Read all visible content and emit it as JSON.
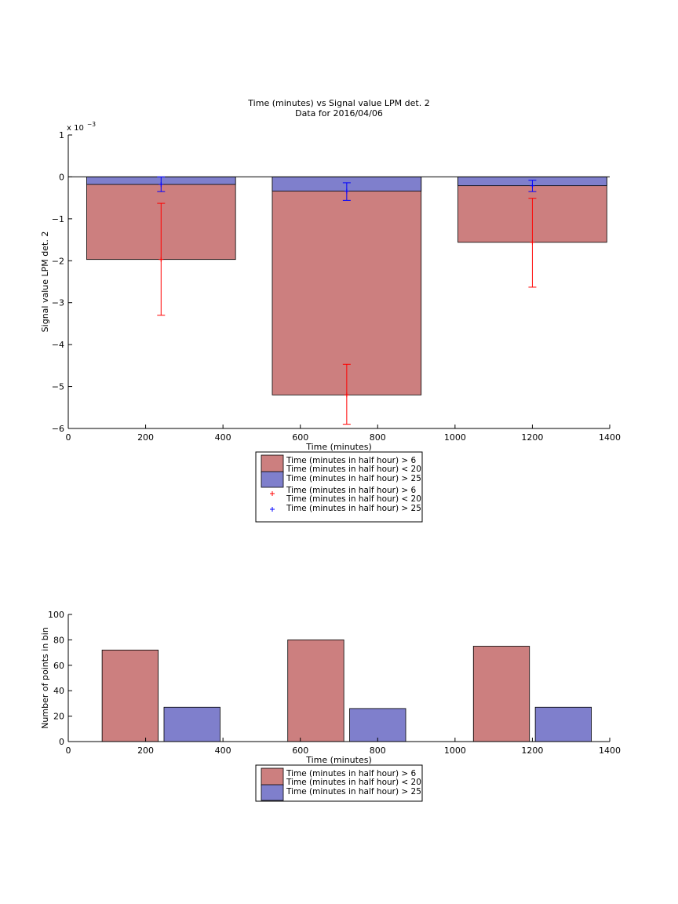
{
  "figure": {
    "title_line1": "Time (minutes) vs Signal value LPM det. 2",
    "title_line2": "Data for 2016/04/06"
  },
  "colors": {
    "red_fill": "#cc7f7f",
    "blue_fill": "#7f7fcc",
    "red_line": "#ff0000",
    "blue_line": "#0000ff"
  },
  "chart_data": [
    {
      "type": "bar",
      "xlabel": "Time (minutes)",
      "ylabel": "Signal value LPM det. 2",
      "y_exponent": {
        "base": "x 10",
        "power": "−3"
      },
      "xlim": [
        0,
        1400
      ],
      "ylim": [
        -6,
        1
      ],
      "x_ticks": [
        0,
        200,
        400,
        600,
        800,
        1000,
        1200,
        1400
      ],
      "y_ticks": [
        1,
        0,
        -1,
        -2,
        -3,
        -4,
        -5,
        -6
      ],
      "grid": false,
      "legend_position": "below",
      "bar_x": [
        240,
        720,
        1200
      ],
      "bar_width": 385,
      "series": [
        {
          "name": "Time (minutes in half hour) > 6 Time (minutes in half hour) < 20",
          "values": [
            -1.97,
            -5.2,
            -1.56
          ],
          "error_mean": [
            -1.97,
            -5.2,
            -1.56
          ],
          "error_low": [
            -3.3,
            -5.9,
            -2.63
          ],
          "error_high": [
            -0.63,
            -4.47,
            -0.51
          ],
          "error_x": [
            240,
            720,
            1200
          ]
        },
        {
          "name": "Time (minutes in half hour) > 25",
          "values": [
            -0.18,
            -0.34,
            -0.21
          ],
          "error_mean": [
            -0.18,
            -0.34,
            -0.21
          ],
          "error_low": [
            -0.35,
            -0.56,
            -0.35
          ],
          "error_high": [
            0.0,
            -0.14,
            -0.08
          ],
          "error_x": [
            240,
            720,
            1200
          ]
        }
      ],
      "legend": [
        {
          "line1": "Time (minutes in half hour) > 6",
          "line2": "Time (minutes in half hour) < 20",
          "marker": "patch-red"
        },
        {
          "line1": "Time (minutes in half hour) > 25",
          "line2": "",
          "marker": "patch-blue"
        },
        {
          "line1": "Time (minutes in half hour) > 6",
          "line2": "Time (minutes in half hour) < 20",
          "marker": "plus-red"
        },
        {
          "line1": "Time (minutes in half hour) > 25",
          "line2": "",
          "marker": "plus-blue"
        }
      ]
    },
    {
      "type": "bar",
      "xlabel": "Time (minutes)",
      "ylabel": "Number of points in bin",
      "xlim": [
        0,
        1400
      ],
      "ylim": [
        0,
        100
      ],
      "x_ticks": [
        0,
        200,
        400,
        600,
        800,
        1000,
        1200,
        1400
      ],
      "y_ticks": [
        0,
        20,
        40,
        60,
        80,
        100
      ],
      "grid": false,
      "legend_position": "below",
      "bar_width": 145,
      "series": [
        {
          "name": "Time (minutes in half hour) > 6 Time (minutes in half hour) < 20",
          "x": [
            160,
            640,
            1120
          ],
          "values": [
            72,
            80,
            75
          ]
        },
        {
          "name": "Time (minutes in half hour) > 25",
          "x": [
            320,
            800,
            1280
          ],
          "values": [
            27,
            26,
            27
          ]
        }
      ],
      "legend": [
        {
          "line1": "Time (minutes in half hour) > 6",
          "line2": "Time (minutes in half hour) < 20",
          "marker": "patch-red"
        },
        {
          "line1": "Time (minutes in half hour) > 25",
          "line2": "",
          "marker": "patch-blue"
        }
      ]
    }
  ]
}
